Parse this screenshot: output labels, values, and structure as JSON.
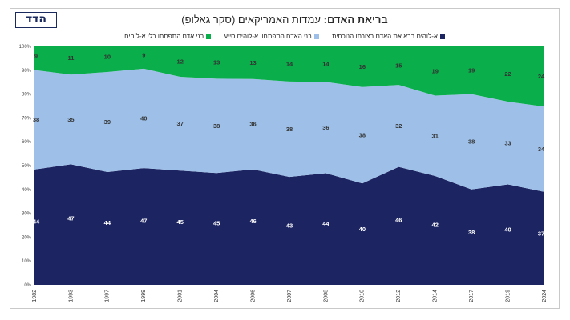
{
  "header": {
    "logo_text": "הדד",
    "title_bold": "בריאת האדם:",
    "title_rest": "עמדות האמריקאים (סקר גאלופ)"
  },
  "chart_data": {
    "type": "area",
    "stacked": true,
    "percent": true,
    "categories": [
      "1982",
      "1993",
      "1997",
      "1999",
      "2001",
      "2004",
      "2006",
      "2007",
      "2008",
      "2010",
      "2012",
      "2014",
      "2017",
      "2019",
      "2024"
    ],
    "series": [
      {
        "name": "א-לוהים ברא את האדם בצורתו הנוכחית",
        "color": "#1c2461",
        "values": [
          44,
          47,
          44,
          47,
          45,
          45,
          46,
          43,
          44,
          40,
          46,
          42,
          38,
          40,
          37
        ]
      },
      {
        "name": "בני האדם התפתחו, א-לוהים סייע",
        "color": "#9ec0e8",
        "values": [
          38,
          35,
          39,
          40,
          37,
          38,
          36,
          38,
          36,
          38,
          32,
          31,
          38,
          33,
          34
        ]
      },
      {
        "name": "בני אדם התפתחו בלי א-לוהים",
        "color": "#0aae4a",
        "values": [
          9,
          11,
          10,
          9,
          12,
          13,
          13,
          14,
          14,
          16,
          15,
          19,
          19,
          22,
          24
        ]
      }
    ],
    "y_ticks": [
      "0%",
      "10%",
      "20%",
      "30%",
      "40%",
      "50%",
      "60%",
      "70%",
      "80%",
      "90%",
      "100%"
    ],
    "ylim": [
      0,
      100
    ],
    "legend_position": "top",
    "grid": true
  }
}
